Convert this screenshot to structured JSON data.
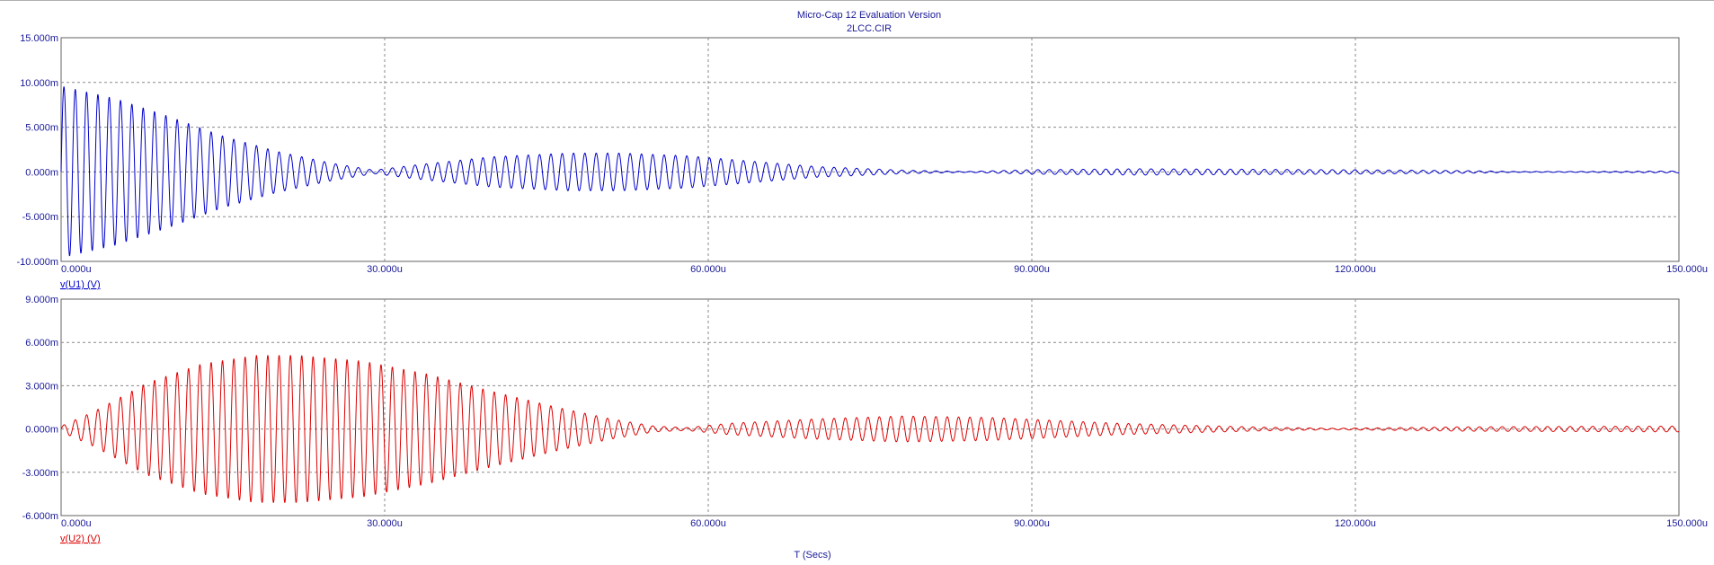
{
  "header": {
    "title": "Micro-Cap 12 Evaluation Version",
    "subtitle": "2LCC.CIR"
  },
  "xaxis_label": "T (Secs)",
  "colors": {
    "trace1": "#0000cc",
    "trace2": "#dd0000",
    "text": "#1a1a99",
    "grid": "#808080"
  },
  "chart_data": [
    {
      "type": "line",
      "trace_label": "v(U1) (V)",
      "x_range": [
        0,
        150
      ],
      "x_unit": "u",
      "ylim": [
        -10,
        15
      ],
      "y_unit": "m",
      "x_ticks": [
        "0.000u",
        "30.000u",
        "60.000u",
        "90.000u",
        "120.000u",
        "150.000u"
      ],
      "y_ticks": [
        "15.000m",
        "10.000m",
        "5.000m",
        "0.000m",
        "-5.000m",
        "-10.000m"
      ],
      "grid": true,
      "oscillation_period": 1.05,
      "envelope": [
        [
          0,
          9.6
        ],
        [
          5,
          8.2
        ],
        [
          10,
          6.2
        ],
        [
          15,
          4.0
        ],
        [
          20,
          2.3
        ],
        [
          25,
          1.0
        ],
        [
          29,
          0.2
        ],
        [
          33,
          0.8
        ],
        [
          40,
          1.7
        ],
        [
          47,
          2.1
        ],
        [
          52,
          2.1
        ],
        [
          58,
          1.8
        ],
        [
          64,
          1.2
        ],
        [
          70,
          0.6
        ],
        [
          78,
          0.2
        ],
        [
          84,
          0.05
        ],
        [
          90,
          0.25
        ],
        [
          100,
          0.35
        ],
        [
          110,
          0.3
        ],
        [
          118,
          0.25
        ],
        [
          125,
          0.2
        ],
        [
          130,
          0.15
        ],
        [
          135,
          0.05
        ],
        [
          140,
          0.05
        ],
        [
          150,
          0.1
        ]
      ]
    },
    {
      "type": "line",
      "trace_label": "v(U2) (V)",
      "x_range": [
        0,
        150
      ],
      "x_unit": "u",
      "ylim": [
        -6,
        9
      ],
      "y_unit": "m",
      "x_ticks": [
        "0.000u",
        "30.000u",
        "60.000u",
        "90.000u",
        "120.000u",
        "150.000u"
      ],
      "y_ticks": [
        "9.000m",
        "6.000m",
        "3.000m",
        "0.000m",
        "-3.000m",
        "-6.000m"
      ],
      "grid": true,
      "oscillation_period": 1.05,
      "envelope": [
        [
          0,
          0.2
        ],
        [
          3,
          1.2
        ],
        [
          8,
          3.2
        ],
        [
          13,
          4.5
        ],
        [
          18,
          5.1
        ],
        [
          22,
          5.1
        ],
        [
          28,
          4.7
        ],
        [
          34,
          3.8
        ],
        [
          40,
          2.6
        ],
        [
          46,
          1.5
        ],
        [
          51,
          0.7
        ],
        [
          55,
          0.2
        ],
        [
          58,
          0.1
        ],
        [
          62,
          0.4
        ],
        [
          70,
          0.7
        ],
        [
          78,
          0.9
        ],
        [
          86,
          0.8
        ],
        [
          92,
          0.6
        ],
        [
          98,
          0.4
        ],
        [
          105,
          0.25
        ],
        [
          112,
          0.12
        ],
        [
          118,
          0.05
        ],
        [
          124,
          0.1
        ],
        [
          130,
          0.15
        ],
        [
          140,
          0.18
        ],
        [
          150,
          0.2
        ]
      ]
    }
  ]
}
